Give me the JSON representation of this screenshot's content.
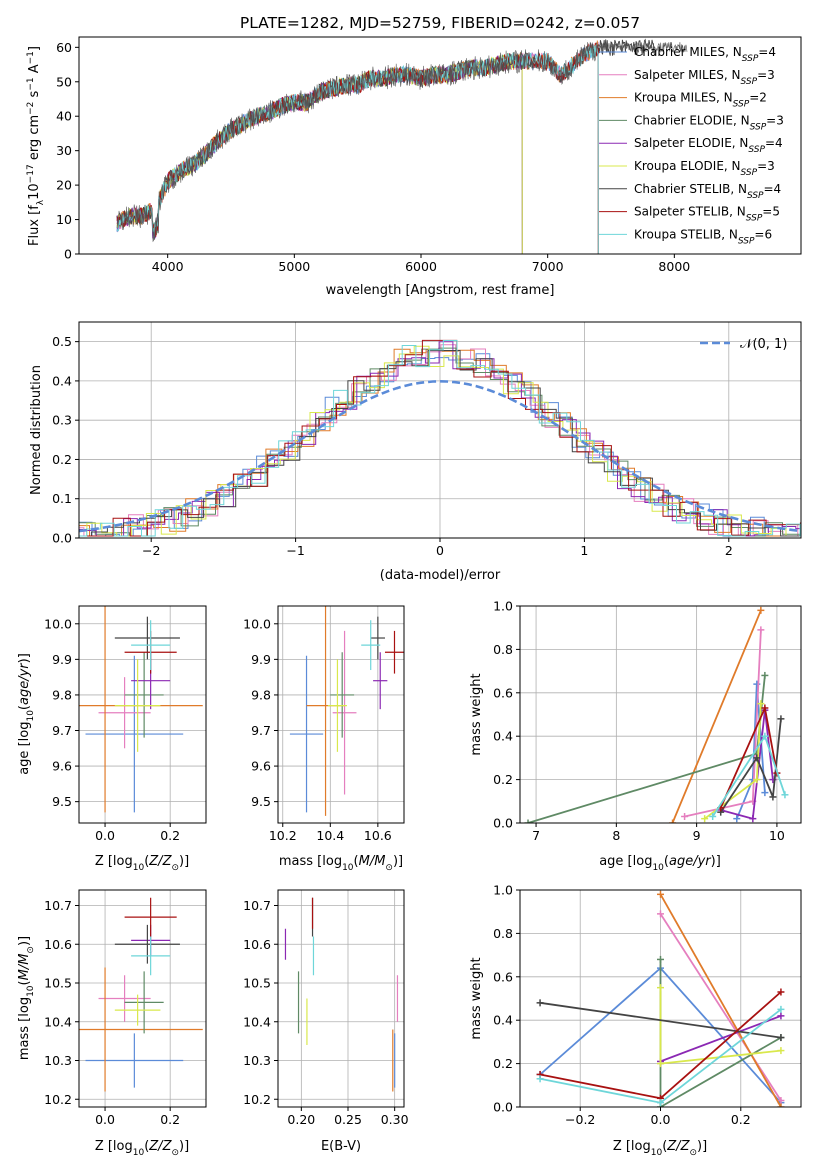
{
  "colors": {
    "c_miles": "#5b8bd8",
    "s_miles": "#e57fbf",
    "k_miles": "#e07b2a",
    "c_elodie": "#5f8a65",
    "s_elodie": "#8b28b3",
    "k_elodie": "#d9e84c",
    "c_stelib": "#444444",
    "s_stelib": "#a81111",
    "k_stelib": "#6ed6d9",
    "normal": "#5b8bd8"
  },
  "chart_data": [
    {
      "type": "line",
      "title": "PLATE=1282, MJD=52759, FIBERID=0242, z=0.057",
      "xlabel": "wavelength [Angstrom, rest frame]",
      "ylabel": "Flux [f_λ 10^-17 erg cm^-2 s^-1 A^-1]",
      "xlim": [
        3300,
        9000
      ],
      "ylim": [
        0,
        63
      ],
      "x_ticks": [
        "4000",
        "5000",
        "6000",
        "7000",
        "8000"
      ],
      "y_ticks": [
        "0",
        "10",
        "20",
        "30",
        "40",
        "50",
        "60"
      ],
      "legend": "top-right",
      "spectrum": {
        "x": [
          3600,
          3700,
          3800,
          3900,
          4000,
          4100,
          4200,
          4300,
          4400,
          4500,
          4600,
          4700,
          4800,
          4900,
          5000,
          5100,
          5200,
          5300,
          5400,
          5500,
          5600,
          5700,
          5800,
          5900,
          6000,
          6100,
          6200,
          6300,
          6400,
          6500,
          6600,
          6700,
          6800,
          6900,
          7000,
          7100,
          7200,
          7300,
          7400
        ],
        "y": [
          9,
          11,
          11,
          13,
          21,
          24,
          26,
          29,
          33,
          36,
          38,
          40,
          41,
          43,
          44,
          44,
          47,
          48,
          49,
          49,
          51,
          51,
          52,
          52,
          51,
          52,
          52,
          53,
          54,
          54,
          55,
          56,
          56,
          56,
          56,
          52,
          55,
          58,
          60
        ]
      },
      "series": [
        {
          "name": "Chabrier MILES, N_SSP=4",
          "label": "Chabrier MILES, N",
          "sub": "SSP",
          "tail": "=4",
          "color_key": "c_miles",
          "end": 7400
        },
        {
          "name": "Salpeter MILES, N_SSP=3",
          "label": "Salpeter MILES, N",
          "sub": "SSP",
          "tail": "=3",
          "color_key": "s_miles",
          "end": 7400
        },
        {
          "name": "Kroupa MILES, N_SSP=2",
          "label": "Kroupa MILES, N",
          "sub": "SSP",
          "tail": "=2",
          "color_key": "k_miles",
          "end": 7400
        },
        {
          "name": "Chabrier ELODIE, N_SSP=3",
          "label": "Chabrier ELODIE, N",
          "sub": "SSP",
          "tail": "=3",
          "color_key": "c_elodie",
          "end": 6800
        },
        {
          "name": "Salpeter ELODIE, N_SSP=4",
          "label": "Salpeter ELODIE, N",
          "sub": "SSP",
          "tail": "=4",
          "color_key": "s_elodie",
          "end": 6800
        },
        {
          "name": "Kroupa ELODIE, N_SSP=3",
          "label": "Kroupa ELODIE, N",
          "sub": "SSP",
          "tail": "=3",
          "color_key": "k_elodie",
          "end": 6800
        },
        {
          "name": "Chabrier STELIB, N_SSP=4",
          "label": "Chabrier STELIB, N",
          "sub": "SSP",
          "tail": "=4",
          "color_key": "c_stelib",
          "end": 7850
        },
        {
          "name": "Salpeter STELIB, N_SSP=5",
          "label": "Salpeter STELIB, N",
          "sub": "SSP",
          "tail": "=5",
          "color_key": "s_stelib",
          "end": 7400
        },
        {
          "name": "Kroupa STELIB, N_SSP=6",
          "label": "Kroupa STELIB, N",
          "sub": "SSP",
          "tail": "=6",
          "color_key": "k_stelib",
          "end": 7400
        }
      ]
    },
    {
      "type": "line",
      "xlabel": "(data-model)/error",
      "ylabel": "Normed distribution",
      "xlim": [
        -2.5,
        2.5
      ],
      "ylim": [
        0,
        0.55
      ],
      "x_ticks": [
        "−2",
        "−1",
        "0",
        "1",
        "2"
      ],
      "y_ticks": [
        "0.0",
        "0.1",
        "0.2",
        "0.3",
        "0.4",
        "0.5"
      ],
      "grid": true,
      "legend": "top-right",
      "normal_label": "𝒩(0, 1)",
      "histograms": "nine step histograms, one per model, coloured as in the legend of the spectrum panel"
    },
    {
      "type": "scatter",
      "xlabel": "Z [log10(Z/Z⊙)]",
      "ylabel": "age [log10(age/yr)]",
      "xlim": [
        -0.08,
        0.31
      ],
      "ylim": [
        9.44,
        10.05
      ],
      "x_ticks": [
        "0.0",
        "0.2"
      ],
      "y_ticks": [
        "9.5",
        "9.6",
        "9.7",
        "9.8",
        "9.9",
        "10.0"
      ],
      "grid": true,
      "points": [
        {
          "color_key": "c_miles",
          "x": 0.09,
          "y": 9.69,
          "xerr": 0.15,
          "yerr": 0.22
        },
        {
          "color_key": "s_miles",
          "x": 0.06,
          "y": 9.75,
          "xerr": 0.08,
          "yerr": 0.1
        },
        {
          "color_key": "k_miles",
          "x": 0.0,
          "y": 9.77,
          "xerr": 0.3,
          "yerr": 0.3
        },
        {
          "color_key": "c_elodie",
          "x": 0.12,
          "y": 9.8,
          "xerr": 0.06,
          "yerr": 0.12
        },
        {
          "color_key": "s_elodie",
          "x": 0.14,
          "y": 9.84,
          "xerr": 0.06,
          "yerr": 0.08
        },
        {
          "color_key": "k_elodie",
          "x": 0.1,
          "y": 9.77,
          "xerr": 0.07,
          "yerr": 0.13
        },
        {
          "color_key": "c_stelib",
          "x": 0.13,
          "y": 9.96,
          "xerr": 0.1,
          "yerr": 0.06
        },
        {
          "color_key": "s_stelib",
          "x": 0.14,
          "y": 9.92,
          "xerr": 0.08,
          "yerr": 0.06
        },
        {
          "color_key": "k_stelib",
          "x": 0.14,
          "y": 9.94,
          "xerr": 0.06,
          "yerr": 0.07
        }
      ]
    },
    {
      "type": "scatter",
      "xlabel": "mass [log10(M/M⊙)]",
      "xlim": [
        10.18,
        10.71
      ],
      "ylim": [
        9.44,
        10.05
      ],
      "x_ticks": [
        "10.2",
        "10.4",
        "10.6"
      ],
      "y_ticks": [
        "9.5",
        "9.6",
        "9.7",
        "9.8",
        "9.9",
        "10.0"
      ],
      "grid": true,
      "points": [
        {
          "color_key": "c_miles",
          "x": 10.3,
          "y": 9.69,
          "xerr": 0.07,
          "yerr": 0.22
        },
        {
          "color_key": "s_miles",
          "x": 10.46,
          "y": 9.75,
          "xerr": 0.05,
          "yerr": 0.23
        },
        {
          "color_key": "k_miles",
          "x": 10.38,
          "y": 9.77,
          "xerr": 0.08,
          "yerr": 0.31
        },
        {
          "color_key": "c_elodie",
          "x": 10.45,
          "y": 9.8,
          "xerr": 0.05,
          "yerr": 0.12
        },
        {
          "color_key": "s_elodie",
          "x": 10.61,
          "y": 9.84,
          "xerr": 0.03,
          "yerr": 0.08
        },
        {
          "color_key": "k_elodie",
          "x": 10.43,
          "y": 9.77,
          "xerr": 0.04,
          "yerr": 0.13
        },
        {
          "color_key": "c_stelib",
          "x": 10.6,
          "y": 9.96,
          "xerr": 0.03,
          "yerr": 0.06
        },
        {
          "color_key": "s_stelib",
          "x": 10.67,
          "y": 9.92,
          "xerr": 0.04,
          "yerr": 0.06
        },
        {
          "color_key": "k_stelib",
          "x": 10.57,
          "y": 9.94,
          "xerr": 0.04,
          "yerr": 0.07
        }
      ]
    },
    {
      "type": "line",
      "xlabel": "age [log10(age/yr)]",
      "ylabel": "mass weight",
      "xlim": [
        6.8,
        10.3
      ],
      "ylim": [
        0,
        1
      ],
      "x_ticks": [
        "7",
        "8",
        "9",
        "10"
      ],
      "y_ticks": [
        "0.0",
        "0.2",
        "0.4",
        "0.6",
        "0.8",
        "1.0"
      ],
      "grid": true,
      "series": [
        {
          "color_key": "c_miles",
          "points": [
            [
              9.5,
              0.02
            ],
            [
              9.7,
              0.2
            ],
            [
              9.75,
              0.64
            ],
            [
              9.85,
              0.14
            ]
          ]
        },
        {
          "color_key": "s_miles",
          "points": [
            [
              8.85,
              0.03
            ],
            [
              9.7,
              0.1
            ],
            [
              9.8,
              0.89
            ]
          ]
        },
        {
          "color_key": "k_miles",
          "points": [
            [
              8.7,
              0.0
            ],
            [
              9.8,
              0.98
            ]
          ]
        },
        {
          "color_key": "c_elodie",
          "points": [
            [
              6.9,
              0.0
            ],
            [
              9.75,
              0.32
            ],
            [
              9.85,
              0.68
            ]
          ]
        },
        {
          "color_key": "s_elodie",
          "points": [
            [
              9.3,
              0.06
            ],
            [
              9.7,
              0.02
            ],
            [
              9.85,
              0.52
            ],
            [
              9.95,
              0.2
            ]
          ]
        },
        {
          "color_key": "k_elodie",
          "points": [
            [
              9.1,
              0.02
            ],
            [
              9.75,
              0.2
            ],
            [
              9.8,
              0.55
            ]
          ]
        },
        {
          "color_key": "c_stelib",
          "points": [
            [
              9.3,
              0.05
            ],
            [
              9.75,
              0.3
            ],
            [
              9.95,
              0.12
            ],
            [
              10.05,
              0.48
            ]
          ]
        },
        {
          "color_key": "s_stelib",
          "points": [
            [
              9.3,
              0.07
            ],
            [
              9.85,
              0.53
            ],
            [
              10.0,
              0.23
            ]
          ]
        },
        {
          "color_key": "k_stelib",
          "points": [
            [
              9.2,
              0.03
            ],
            [
              9.85,
              0.4
            ],
            [
              10.1,
              0.13
            ]
          ]
        }
      ]
    },
    {
      "type": "scatter",
      "xlabel": "Z [log10(Z/Z⊙)]",
      "ylabel": "mass [log10(M/M⊙)]",
      "xlim": [
        -0.08,
        0.31
      ],
      "ylim": [
        10.18,
        10.74
      ],
      "x_ticks": [
        "0.0",
        "0.2"
      ],
      "y_ticks": [
        "10.2",
        "10.3",
        "10.4",
        "10.5",
        "10.6",
        "10.7"
      ],
      "grid": true,
      "points": [
        {
          "color_key": "c_miles",
          "x": 0.09,
          "y": 10.3,
          "xerr": 0.15,
          "yerr": 0.07
        },
        {
          "color_key": "s_miles",
          "x": 0.06,
          "y": 10.46,
          "xerr": 0.08,
          "yerr": 0.06
        },
        {
          "color_key": "k_miles",
          "x": 0.0,
          "y": 10.38,
          "xerr": 0.3,
          "yerr": 0.16
        },
        {
          "color_key": "c_elodie",
          "x": 0.12,
          "y": 10.45,
          "xerr": 0.06,
          "yerr": 0.08
        },
        {
          "color_key": "s_elodie",
          "x": 0.14,
          "y": 10.61,
          "xerr": 0.06,
          "yerr": 0.04
        },
        {
          "color_key": "k_elodie",
          "x": 0.1,
          "y": 10.43,
          "xerr": 0.07,
          "yerr": 0.04
        },
        {
          "color_key": "c_stelib",
          "x": 0.13,
          "y": 10.6,
          "xerr": 0.1,
          "yerr": 0.05
        },
        {
          "color_key": "s_stelib",
          "x": 0.14,
          "y": 10.67,
          "xerr": 0.08,
          "yerr": 0.05
        },
        {
          "color_key": "k_stelib",
          "x": 0.14,
          "y": 10.57,
          "xerr": 0.06,
          "yerr": 0.05
        }
      ]
    },
    {
      "type": "scatter",
      "xlabel": "E(B-V)",
      "xlim": [
        0.175,
        0.31
      ],
      "ylim": [
        10.18,
        10.74
      ],
      "x_ticks": [
        "0.20",
        "0.25",
        "0.30"
      ],
      "y_ticks": [
        "10.2",
        "10.3",
        "10.4",
        "10.5",
        "10.6",
        "10.7"
      ],
      "grid": true,
      "points": [
        {
          "color_key": "c_miles",
          "x": 0.3,
          "y": 10.3,
          "yerr": 0.07
        },
        {
          "color_key": "s_miles",
          "x": 0.303,
          "y": 10.46,
          "yerr": 0.06
        },
        {
          "color_key": "k_miles",
          "x": 0.298,
          "y": 10.3,
          "yerr": 0.08
        },
        {
          "color_key": "c_elodie",
          "x": 0.197,
          "y": 10.45,
          "yerr": 0.08
        },
        {
          "color_key": "s_elodie",
          "x": 0.183,
          "y": 10.6,
          "yerr": 0.04
        },
        {
          "color_key": "k_elodie",
          "x": 0.206,
          "y": 10.4,
          "yerr": 0.06
        },
        {
          "color_key": "c_stelib",
          "x": 0.212,
          "y": 10.67,
          "yerr": 0.05
        },
        {
          "color_key": "s_stelib",
          "x": 0.212,
          "y": 10.68,
          "yerr": 0.04
        },
        {
          "color_key": "k_stelib",
          "x": 0.213,
          "y": 10.57,
          "yerr": 0.05
        }
      ]
    },
    {
      "type": "line",
      "xlabel": "Z [log10(Z/Z⊙)]",
      "ylabel": "mass weight",
      "xlim": [
        -0.35,
        0.35
      ],
      "ylim": [
        0,
        1
      ],
      "x_ticks": [
        "−0.2",
        "0.0",
        "0.2"
      ],
      "y_ticks": [
        "0.0",
        "0.2",
        "0.4",
        "0.6",
        "0.8",
        "1.0"
      ],
      "grid": true,
      "series": [
        {
          "color_key": "c_miles",
          "points": [
            [
              -0.3,
              0.15
            ],
            [
              0.0,
              0.64
            ],
            [
              0.3,
              0.02
            ]
          ]
        },
        {
          "color_key": "s_miles",
          "points": [
            [
              0.0,
              0.89
            ],
            [
              0.3,
              0.03
            ]
          ]
        },
        {
          "color_key": "k_miles",
          "points": [
            [
              0.0,
              0.98
            ],
            [
              0.3,
              0.0
            ]
          ]
        },
        {
          "color_key": "c_elodie",
          "points": [
            [
              0.0,
              0.68
            ],
            [
              0.0,
              0.0
            ],
            [
              0.3,
              0.32
            ]
          ]
        },
        {
          "color_key": "s_elodie",
          "points": [
            [
              0.0,
              0.21
            ],
            [
              0.3,
              0.42
            ]
          ]
        },
        {
          "color_key": "k_elodie",
          "points": [
            [
              0.0,
              0.55
            ],
            [
              0.0,
              0.2
            ],
            [
              0.3,
              0.26
            ]
          ]
        },
        {
          "color_key": "c_stelib",
          "points": [
            [
              -0.3,
              0.48
            ],
            [
              0.3,
              0.32
            ]
          ]
        },
        {
          "color_key": "s_stelib",
          "points": [
            [
              -0.3,
              0.15
            ],
            [
              0.0,
              0.04
            ],
            [
              0.3,
              0.53
            ]
          ]
        },
        {
          "color_key": "k_stelib",
          "points": [
            [
              -0.3,
              0.13
            ],
            [
              0.0,
              0.02
            ],
            [
              0.3,
              0.45
            ]
          ]
        }
      ]
    }
  ]
}
